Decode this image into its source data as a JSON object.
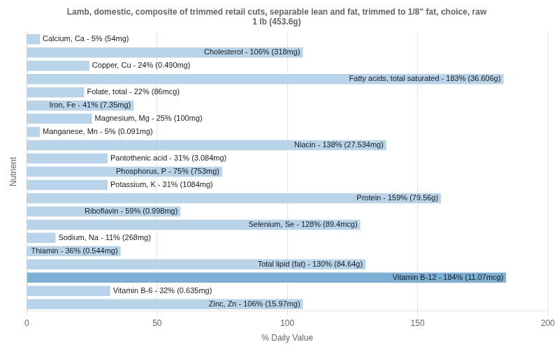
{
  "chart_data": {
    "type": "bar",
    "orientation": "horizontal",
    "title": "Lamb, domestic, composite of trimmed retail cuts, separable lean and fat, trimmed to 1/8\" fat, choice, raw\n1 lb (453.6g)",
    "xlabel": "% Daily Value",
    "ylabel": "Nutrient",
    "categories": [
      "Zinc, Zn - 106% (15.97mg)",
      "Vitamin B-6 - 32% (0.635mg)",
      "Vitamin B-12 - 184% (11.07mcg)",
      "Total lipid (fat) - 130% (84.64g)",
      "Thiamin - 36% (0.544mg)",
      "Sodium, Na - 11% (268mg)",
      "Selenium, Se - 128% (89.4mcg)",
      "Riboflavin - 59% (0.998mg)",
      "Protein - 159% (79.56g)",
      "Potassium, K - 31% (1084mg)",
      "Phosphorus, P - 75% (753mg)",
      "Pantothenic acid - 31% (3.084mg)",
      "Niacin - 138% (27.534mg)",
      "Manganese, Mn - 5% (0.091mg)",
      "Magnesium, Mg - 25% (100mg)",
      "Iron, Fe - 41% (7.35mg)",
      "Folate, total - 22% (86mcg)",
      "Fatty acids, total saturated - 183% (36.606g)",
      "Copper, Cu - 24% (0.490mg)",
      "Cholesterol - 106% (318mg)",
      "Calcium, Ca - 5% (54mg)"
    ],
    "values": [
      106,
      32,
      184,
      130,
      36,
      11,
      128,
      59,
      159,
      31,
      75,
      31,
      138,
      5,
      25,
      41,
      22,
      183,
      24,
      106,
      5
    ],
    "colors": [
      "#b8d4ea",
      "#b8d4ea",
      "#7bafd4",
      "#b8d4ea",
      "#b8d4ea",
      "#b8d4ea",
      "#b8d4ea",
      "#b8d4ea",
      "#b8d4ea",
      "#b8d4ea",
      "#b8d4ea",
      "#b8d4ea",
      "#b8d4ea",
      "#b8d4ea",
      "#b8d4ea",
      "#b8d4ea",
      "#b8d4ea",
      "#b8d4ea",
      "#b8d4ea",
      "#b8d4ea",
      "#b8d4ea"
    ],
    "xlim": [
      0,
      200
    ],
    "xticks": [
      0,
      50,
      100,
      150,
      200
    ],
    "grid": true,
    "tick_labels": "x"
  }
}
